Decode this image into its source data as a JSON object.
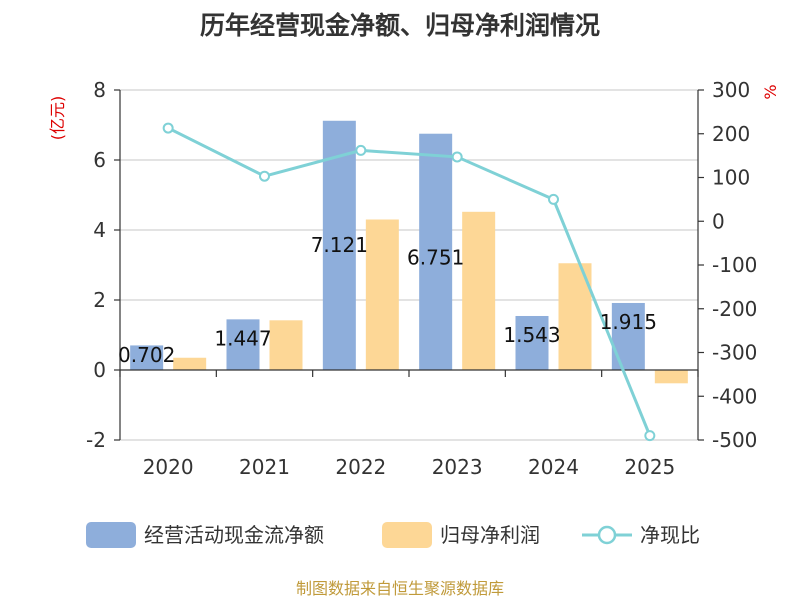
{
  "chart_data": {
    "type": "bar",
    "title": "历年经营现金净额、归母净利润情况",
    "categories": [
      "2020",
      "2021",
      "2022",
      "2023",
      "2024",
      "2025"
    ],
    "series": [
      {
        "name": "经营活动现金流净额",
        "type": "bar",
        "axis": "left",
        "values": [
          0.702,
          1.447,
          7.121,
          6.751,
          1.543,
          1.915
        ],
        "labels": [
          "0.702",
          "1.447",
          "7.121",
          "6.751",
          "1.543",
          "1.915"
        ]
      },
      {
        "name": "归母净利润",
        "type": "bar",
        "axis": "left",
        "values": [
          0.35,
          1.42,
          4.3,
          4.52,
          3.05,
          -0.38
        ]
      },
      {
        "name": "净现比",
        "type": "line",
        "axis": "right",
        "values": [
          213,
          103,
          162,
          147,
          50,
          -490
        ]
      }
    ],
    "left_axis": {
      "unit": "(亿元)",
      "min": -2,
      "max": 8,
      "ticks": [
        8,
        6,
        4,
        2,
        0,
        -2
      ]
    },
    "right_axis": {
      "unit": "%",
      "min": -500,
      "max": 300,
      "ticks": [
        300,
        200,
        100,
        0,
        -100,
        -200,
        -300,
        -400,
        -500
      ]
    },
    "legend": [
      "经营活动现金流净额",
      "归母净利润",
      "净现比"
    ],
    "legend_position": "bottom",
    "grid": true
  },
  "colors": {
    "cash": "#8eaedb",
    "profit": "#fdd796",
    "ratio": "#7fd1d6",
    "unit": "#dd0000",
    "source": "#c09a3a"
  },
  "source": "制图数据来自恒生聚源数据库"
}
